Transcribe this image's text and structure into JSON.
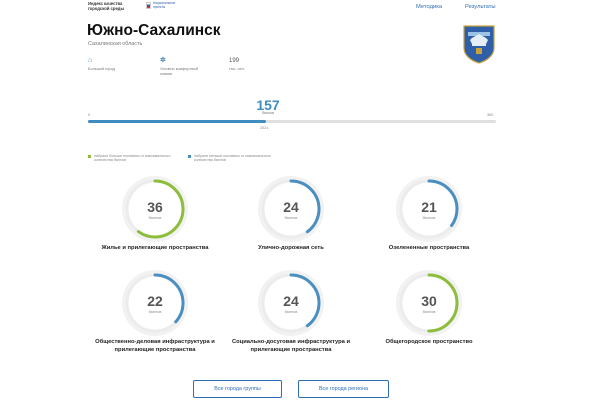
{
  "header": {
    "logo_text": "Индекс качества городской среды",
    "badge_text": "Национальные проекты",
    "nav": [
      "Методика",
      "Результаты"
    ]
  },
  "city": {
    "name": "Южно-Сахалинск",
    "region": "Сахалинская область"
  },
  "stats": [
    {
      "icon": "city-buildings-icon",
      "glyph": "⌂",
      "label": "Большой город"
    },
    {
      "icon": "gear-icon",
      "glyph": "✲",
      "label": "Условно комфортный климат"
    },
    {
      "icon": "",
      "value": "199",
      "label": "тыс. чел."
    }
  ],
  "score": {
    "total": "157",
    "total_value": 157,
    "unit": "баллов",
    "min": "0",
    "max": "360",
    "max_value": 360,
    "year": "2021"
  },
  "legend": [
    {
      "text": "набрали больше половины от максимального количества баллов",
      "color": "#8dbd3b"
    },
    {
      "text": "набрали меньше половины от максимального количества баллов",
      "color": "#4a8fc0"
    }
  ],
  "colors": {
    "above_half": "#8dbd3b",
    "below_half": "#4a8fc0",
    "ring_track": "#ececec"
  },
  "categories": [
    {
      "value": "36",
      "max": 60,
      "unit": "баллов",
      "label": "Жилье и прилегающие пространства",
      "status": "above"
    },
    {
      "value": "24",
      "max": 60,
      "unit": "баллов",
      "label": "Улично-дорожная сеть",
      "status": "below"
    },
    {
      "value": "21",
      "max": 60,
      "unit": "баллов",
      "label": "Озелененные пространства",
      "status": "below"
    },
    {
      "value": "22",
      "max": 60,
      "unit": "баллов",
      "label": "Общественно-деловая инфраструктура и прилегающие пространства",
      "status": "below"
    },
    {
      "value": "24",
      "max": 60,
      "unit": "баллов",
      "label": "Социально-досуговая инфраструктура и прилегающие пространства",
      "status": "below"
    },
    {
      "value": "30",
      "max": 60,
      "unit": "баллов",
      "label": "Общегородское пространство",
      "status": "above"
    }
  ],
  "buttons": {
    "group": "Все города группы",
    "region": "Все города региона"
  }
}
